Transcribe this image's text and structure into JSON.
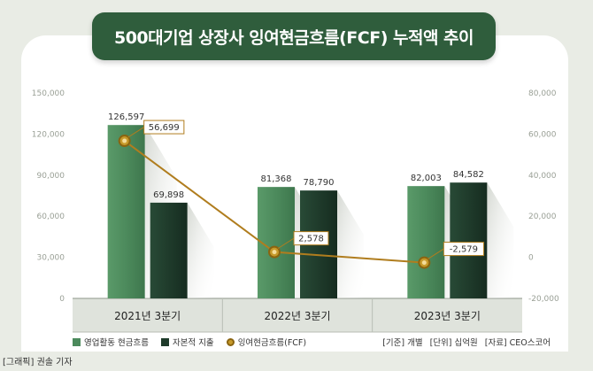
{
  "title": "500대기업 상장사 잉여현금흐름(FCF) 누적액 추이",
  "legend": {
    "op_label": "영업활동 현금흐름",
    "cap_label": "자본적 지출",
    "fcf_label": "잉여현금흐름(FCF)",
    "basis": "[기준] 개별",
    "unit": "[단위] 십억원",
    "source": "[자료] CEO스코어"
  },
  "credit": "[그래픽] 권솔 기자",
  "colors": {
    "op": "#4c8a5c",
    "cap": "#1f3b2b",
    "fcf_line": "#b07d1e",
    "title_bg": "#2f5d3c"
  },
  "chart_data": {
    "type": "bar",
    "categories": [
      "2021년 3분기",
      "2022년 3분기",
      "2023년 3분기"
    ],
    "series": [
      {
        "name": "영업활동 현금흐름",
        "type": "bar",
        "axis": "left",
        "values": [
          126597,
          81368,
          82003
        ],
        "labels": [
          "126,597",
          "81,368",
          "82,003"
        ]
      },
      {
        "name": "자본적 지출",
        "type": "bar",
        "axis": "left",
        "values": [
          69898,
          78790,
          84582
        ],
        "labels": [
          "69,898",
          "78,790",
          "84,582"
        ]
      },
      {
        "name": "잉여현금흐름(FCF)",
        "type": "line",
        "axis": "right",
        "values": [
          56699,
          2578,
          -2579
        ],
        "labels": [
          "56,699",
          "2,578",
          "-2,579"
        ]
      }
    ],
    "ylim_left": [
      0,
      150000
    ],
    "ylim_right": [
      -20000,
      80000
    ],
    "left_ticks": [
      "150,000",
      "120,000",
      "90,000",
      "60,000",
      "30,000",
      "0"
    ],
    "left_tick_values": [
      150000,
      120000,
      90000,
      60000,
      30000,
      0
    ],
    "right_ticks": [
      "80,000",
      "60,000",
      "40,000",
      "20,000",
      "0",
      "-20,000"
    ],
    "right_tick_values": [
      80000,
      60000,
      40000,
      20000,
      0,
      -20000
    ]
  }
}
